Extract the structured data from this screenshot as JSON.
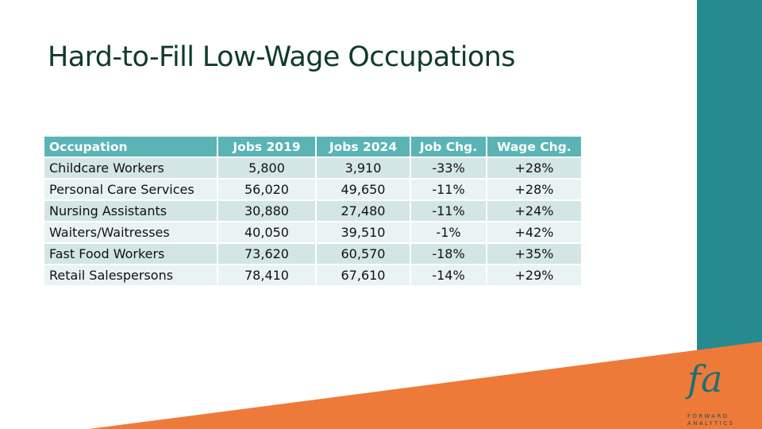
{
  "slide": {
    "title": "Hard-to-Fill Low-Wage Occupations",
    "colors": {
      "title": "#0f3b2c",
      "teal_bar": "#278a8e",
      "orange_band": "#ee7a3a",
      "header_fill": "#5ab4b5",
      "row_odd": "#d4e5e6",
      "row_even": "#eaf3f3"
    }
  },
  "table": {
    "headers": [
      "Occupation",
      "Jobs 2019",
      "Jobs 2024",
      "Job Chg.",
      "Wage Chg."
    ],
    "rows": [
      [
        "Childcare Workers",
        "5,800",
        "3,910",
        "-33%",
        "+28%"
      ],
      [
        "Personal Care Services",
        "56,020",
        "49,650",
        "-11%",
        "+28%"
      ],
      [
        "Nursing Assistants",
        "30,880",
        "27,480",
        "-11%",
        "+24%"
      ],
      [
        "Waiters/Waitresses",
        "40,050",
        "39,510",
        "-1%",
        "+42%"
      ],
      [
        "Fast Food Workers",
        "73,620",
        "60,570",
        "-18%",
        "+35%"
      ],
      [
        "Retail Salespersons",
        "78,410",
        "67,610",
        "-14%",
        "+29%"
      ]
    ]
  },
  "logo": {
    "mark": "fa",
    "line1": "FORWARD",
    "line2": "ANALYTICS"
  }
}
